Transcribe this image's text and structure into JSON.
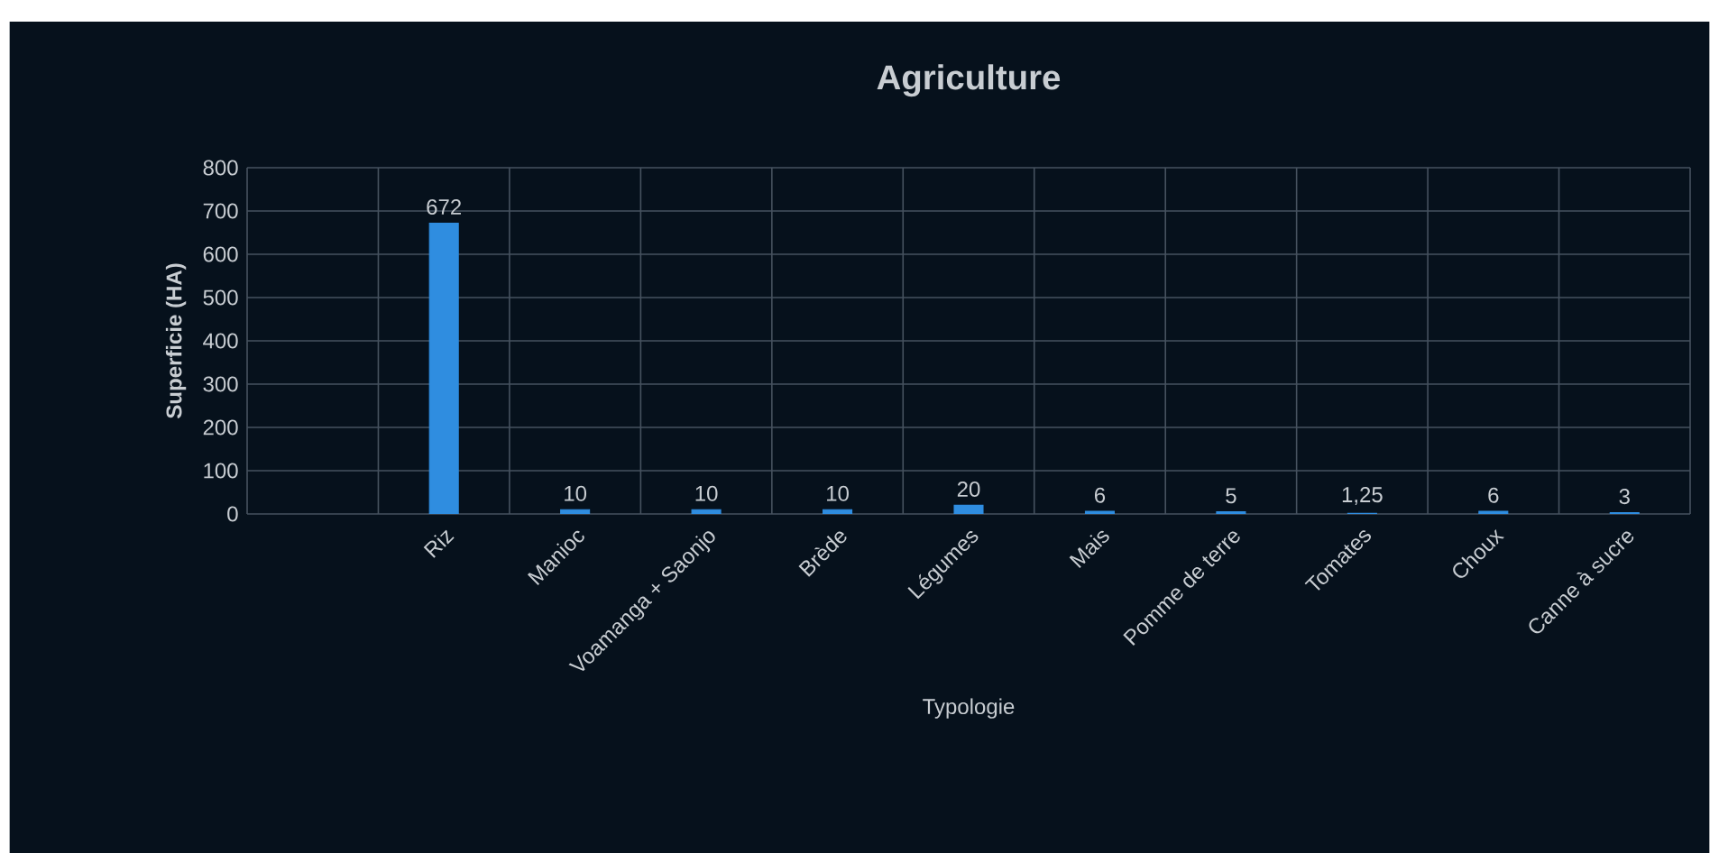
{
  "chart_data": {
    "type": "bar",
    "title": "Agriculture",
    "xlabel": "Typologie",
    "ylabel": "Superficie  (HA)",
    "categories": [
      null,
      "Riz",
      "Manioc",
      "Voamanga + Saonjo",
      "Brède",
      "Légumes",
      "Mais",
      "Pomme de terre",
      "Tomates",
      "Choux",
      "Canne à sucre"
    ],
    "values": [
      null,
      672,
      10,
      10,
      10,
      20,
      6,
      5,
      1.25,
      6,
      3
    ],
    "value_labels": [
      null,
      "672",
      "10",
      "10",
      "10",
      "20",
      "6",
      "5",
      "1,25",
      "6",
      "3"
    ],
    "color": "#2f8de0",
    "ylim": [
      0,
      800
    ],
    "yticks": [
      0,
      100,
      200,
      300,
      400,
      500,
      600,
      700,
      800
    ],
    "grid": true
  }
}
